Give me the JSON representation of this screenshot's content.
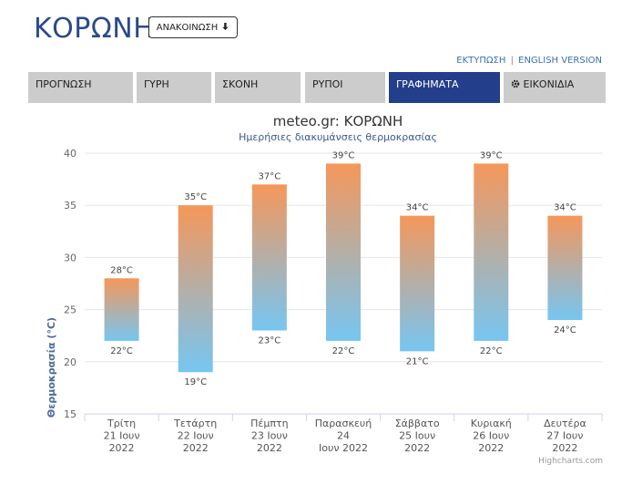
{
  "page": {
    "title": "ΚΟΡΩΝΗ",
    "announce_label": "ΑΝΑΚΟΙΝΩΣΗ",
    "announce_icon": "arrow-down-icon",
    "links": {
      "print": "ΕΚΤΥΠΩΣΗ",
      "separator": "|",
      "english": "ENGLISH VERSION"
    }
  },
  "tabs": [
    {
      "label": "ΠΡΟΓΝΩΣΗ"
    },
    {
      "label": "ΓΥΡΗ"
    },
    {
      "label": "ΣΚΟΝΗ"
    },
    {
      "label": "ΡΥΠΟΙ"
    },
    {
      "label": "ΓΡΑΦΗΜΑΤΑ",
      "active": true
    },
    {
      "label": "ΕΙΚΟΝΙΔΙΑ",
      "icon": "gear-icon"
    }
  ],
  "colors": {
    "accent": "#233e8b",
    "title": "#2b4a8c",
    "bar_top": "#f5975a",
    "bar_bottom": "#76c6f2"
  },
  "chart_data": {
    "type": "bar",
    "title": "meteo.gr: ΚΟΡΩΝΗ",
    "subtitle": "Ημερήσιες διακυμάνσεις θερμοκρασίας",
    "ylabel": "Θερμοκρασία (°C)",
    "xlabel": "",
    "ylim": [
      15,
      40
    ],
    "yticks": [
      "15",
      "20",
      "25",
      "30",
      "35",
      "40"
    ],
    "grid": true,
    "categories": [
      [
        "Τρίτη",
        "21 Ιουν",
        "2022"
      ],
      [
        "Τετάρτη",
        "22 Ιουν",
        "2022"
      ],
      [
        "Πέμπτη",
        "23 Ιουν",
        "2022"
      ],
      [
        "Παρασκευή",
        "24",
        "Ιουν 2022"
      ],
      [
        "Σάββατο",
        "25 Ιουν",
        "2022"
      ],
      [
        "Κυριακή",
        "26 Ιουν",
        "2022"
      ],
      [
        "Δευτέρα",
        "27 Ιουν",
        "2022"
      ]
    ],
    "series": [
      {
        "low": [
          22,
          19,
          23,
          22,
          21,
          22,
          24
        ],
        "high": [
          28,
          35,
          37,
          39,
          34,
          39,
          34
        ]
      }
    ],
    "low_labels": [
      "22°C",
      "19°C",
      "23°C",
      "22°C",
      "21°C",
      "22°C",
      "24°C"
    ],
    "high_labels": [
      "28°C",
      "35°C",
      "37°C",
      "39°C",
      "34°C",
      "39°C",
      "34°C"
    ],
    "credit": "Highcharts.com"
  }
}
